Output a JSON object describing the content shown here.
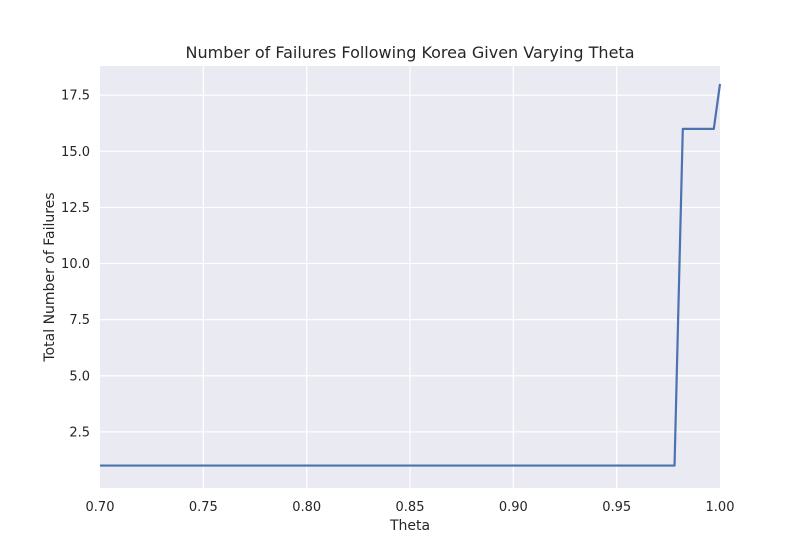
{
  "chart_data": {
    "type": "line",
    "title": "Number of Failures Following Korea Given Varying Theta",
    "xlabel": "Theta",
    "ylabel": "Total Number of Failures",
    "xlim": [
      0.7,
      1.0
    ],
    "ylim": [
      0.0,
      18.8
    ],
    "xticks": [
      "0.70",
      "0.75",
      "0.80",
      "0.85",
      "0.90",
      "0.95",
      "1.00"
    ],
    "yticks": [
      "2.5",
      "5.0",
      "7.5",
      "10.0",
      "12.5",
      "15.0",
      "17.5"
    ],
    "grid": true,
    "series": [
      {
        "color": "#4c72b0",
        "x": [
          0.7,
          0.978,
          0.982,
          0.997,
          1.0
        ],
        "y": [
          1,
          1,
          16,
          16,
          18
        ]
      }
    ]
  }
}
